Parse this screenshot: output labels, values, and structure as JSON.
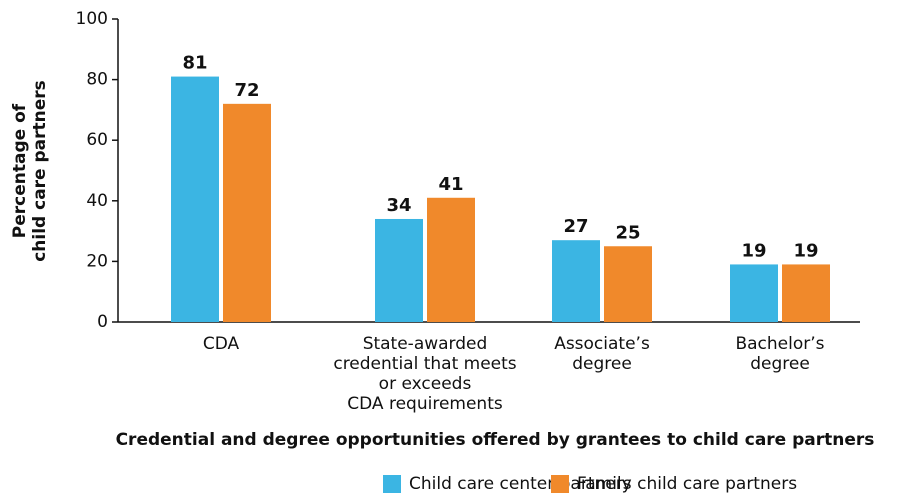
{
  "chart_data": {
    "type": "bar",
    "x_label": "Credential and degree opportunities offered by grantees to child care partners",
    "y_label": "Percentage of\nchild care partners",
    "categories": [
      "CDA",
      "State-awarded\ncredential that meets\nor exceeds\nCDA requirements",
      "Associate’s\ndegree",
      "Bachelor’s\ndegree"
    ],
    "series": [
      {
        "name": "Child care center partners",
        "color": "#3bb5e3",
        "values": [
          81,
          34,
          27,
          19
        ]
      },
      {
        "name": "Family child care partners",
        "color": "#f0892b",
        "values": [
          72,
          41,
          25,
          19
        ]
      }
    ],
    "ylim": [
      0,
      100
    ],
    "yticks": [
      0,
      20,
      40,
      60,
      80,
      100
    ],
    "grid": false
  }
}
